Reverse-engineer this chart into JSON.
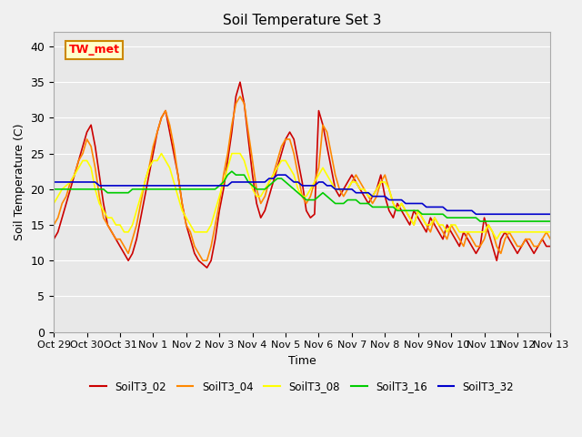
{
  "title": "Soil Temperature Set 3",
  "xlabel": "Time",
  "ylabel": "Soil Temperature (C)",
  "annotation": "TW_met",
  "ylim": [
    0,
    42
  ],
  "yticks": [
    0,
    5,
    10,
    15,
    20,
    25,
    30,
    35,
    40
  ],
  "series": {
    "SoilT3_02": {
      "color": "#cc0000",
      "y": [
        13,
        14,
        16,
        18,
        20,
        22,
        24,
        26,
        28,
        29,
        26,
        22,
        18,
        15,
        14,
        13,
        12,
        11,
        10,
        11,
        13,
        16,
        19,
        22,
        25,
        28,
        30,
        31,
        28,
        25,
        22,
        18,
        15,
        13,
        11,
        10,
        9.5,
        9,
        10,
        13,
        17,
        20,
        24,
        28,
        33,
        35,
        32,
        27,
        22,
        18,
        16,
        17,
        19,
        21,
        23,
        25,
        27,
        28,
        27,
        24,
        21,
        17,
        16,
        16.5,
        31,
        29,
        26,
        23,
        20,
        19,
        20,
        21,
        22,
        21,
        20,
        19,
        18,
        19,
        20,
        22,
        19,
        17,
        16,
        18,
        17,
        16,
        15,
        17,
        16,
        15,
        14,
        16,
        15,
        14,
        13,
        15,
        14,
        13,
        12,
        14,
        13,
        12,
        11,
        12,
        16,
        14,
        12,
        10,
        13,
        14,
        13,
        12,
        11,
        12,
        13,
        12,
        11,
        12,
        13,
        12,
        12,
        11,
        12,
        13,
        14,
        13,
        12,
        11,
        12,
        11,
        12,
        13,
        12,
        11,
        13,
        12,
        12,
        13,
        14,
        13,
        12,
        11,
        11,
        12,
        13,
        12,
        12,
        13,
        14,
        13,
        12,
        11,
        11,
        12,
        11,
        10,
        11,
        12,
        13,
        14,
        13,
        12,
        11,
        10,
        11,
        12,
        14,
        15,
        15,
        15,
        15,
        15,
        15,
        15,
        15,
        15,
        15,
        15,
        15,
        15,
        15,
        15,
        15,
        15,
        15,
        15,
        15,
        15,
        15,
        15,
        15,
        15,
        15,
        15,
        15
      ]
    },
    "SoilT3_04": {
      "color": "#ff8800",
      "y": [
        15,
        16,
        18,
        19,
        21,
        22,
        24,
        25,
        27,
        26,
        23,
        19,
        16,
        15,
        14,
        13,
        13,
        12,
        11,
        13,
        15,
        18,
        21,
        23,
        26,
        28,
        30,
        31,
        29,
        26,
        22,
        18,
        15,
        14,
        12,
        11,
        10,
        10,
        12,
        15,
        18,
        22,
        25,
        29,
        32,
        33,
        32,
        28,
        24,
        20,
        18,
        19,
        21,
        22,
        24,
        26,
        27,
        27,
        25,
        22,
        19,
        18,
        19,
        21,
        23,
        29,
        28,
        25,
        22,
        20,
        19,
        20,
        21,
        22,
        21,
        20,
        19,
        18,
        19,
        21,
        22,
        20,
        18,
        17,
        18,
        17,
        16,
        15,
        17,
        16,
        15,
        14,
        16,
        15,
        14,
        13,
        15,
        14,
        13,
        12,
        14,
        13,
        12,
        12,
        13,
        15,
        14,
        12,
        11,
        13,
        14,
        13,
        12,
        12,
        13,
        13,
        12,
        12,
        13,
        14,
        13,
        12,
        12,
        13,
        14,
        13,
        12,
        12,
        13,
        14,
        13,
        12,
        13,
        14,
        13,
        12,
        14,
        13,
        13,
        14,
        15,
        14,
        13,
        12,
        12,
        13,
        14,
        13,
        13,
        14,
        15,
        14,
        13,
        12,
        12,
        13,
        12,
        11,
        12,
        13,
        14,
        15,
        14,
        13,
        12,
        11,
        12,
        13,
        15,
        15.5,
        15.5,
        15,
        15,
        15,
        15,
        15,
        15,
        15,
        15,
        15,
        15,
        15,
        15,
        15,
        15,
        15,
        15,
        15,
        15,
        15,
        15,
        15,
        15,
        15,
        15
      ]
    },
    "SoilT3_08": {
      "color": "#ffff00",
      "y": [
        18,
        19,
        20,
        20.5,
        21,
        22,
        23,
        24,
        24,
        23,
        20,
        18,
        17,
        16,
        16,
        15,
        15,
        14,
        14,
        15,
        17,
        19,
        21,
        23,
        24,
        24,
        25,
        24,
        23,
        21,
        19,
        17,
        16,
        15,
        14,
        14,
        14,
        14,
        15,
        17,
        19,
        21,
        23,
        25,
        25,
        25,
        24,
        22,
        20,
        19,
        19,
        20,
        21,
        22,
        23,
        24,
        24,
        23,
        22,
        20,
        19,
        19,
        20,
        21,
        22,
        23,
        22,
        21,
        20,
        20,
        20,
        20,
        21,
        21,
        20,
        20,
        19,
        19,
        20,
        21,
        21,
        20,
        18,
        17,
        18,
        17,
        16,
        15,
        17,
        16,
        15,
        15,
        16,
        15,
        15,
        14,
        15,
        15,
        14,
        14,
        14,
        14,
        14,
        14,
        14,
        15,
        14,
        13,
        14,
        14,
        14,
        14,
        14,
        14,
        14,
        14,
        14,
        14,
        14,
        14,
        14,
        14,
        14,
        14,
        14,
        14,
        14,
        14,
        14,
        14,
        14,
        14,
        14,
        14,
        14,
        14,
        14,
        14,
        14,
        14,
        14,
        14,
        14,
        14,
        14,
        14,
        14,
        14,
        14,
        14,
        14,
        14,
        14,
        14,
        14,
        14,
        14,
        14,
        14,
        14,
        14,
        14,
        14,
        14,
        14,
        14,
        14,
        14.5,
        15,
        15,
        15,
        15,
        15,
        15,
        14.5,
        14.5,
        14.5,
        14.5,
        14.5,
        14.5,
        14.5,
        14.5,
        14.5,
        14.5,
        14.5,
        14.5,
        14.5,
        14.5,
        14.5,
        14.5,
        14.5,
        14.5,
        14.5,
        14.5,
        14.5
      ]
    },
    "SoilT3_16": {
      "color": "#00cc00",
      "y": [
        20,
        20,
        20,
        20,
        20,
        20,
        20,
        20,
        20,
        20,
        20,
        20,
        20,
        19.5,
        19.5,
        19.5,
        19.5,
        19.5,
        19.5,
        20,
        20,
        20,
        20,
        20,
        20,
        20,
        20,
        20,
        20,
        20,
        20,
        20,
        20,
        20,
        20,
        20,
        20,
        20,
        20,
        20,
        20.5,
        21,
        22,
        22.5,
        22,
        22,
        22,
        21,
        20.5,
        20,
        20,
        20,
        20.5,
        21,
        21.5,
        21.5,
        21,
        20.5,
        20,
        19.5,
        19,
        18.5,
        18.5,
        18.5,
        19,
        19.5,
        19,
        18.5,
        18,
        18,
        18,
        18.5,
        18.5,
        18.5,
        18,
        18,
        18,
        17.5,
        17.5,
        17.5,
        17.5,
        17.5,
        17.5,
        17,
        17,
        17,
        17,
        17,
        17,
        16.5,
        16.5,
        16.5,
        16.5,
        16.5,
        16.5,
        16,
        16,
        16,
        16,
        16,
        16,
        16,
        16,
        15.5,
        15.5,
        15.5,
        15.5,
        15.5,
        15.5,
        15.5,
        15.5,
        15.5,
        15.5,
        15.5,
        15.5,
        15.5,
        15.5,
        15.5,
        15.5,
        15.5,
        15.5,
        15.5,
        15.5,
        15.5,
        15.5,
        15.5,
        15.5,
        15.5,
        15.5,
        15.5,
        15.5,
        15.5,
        15.5,
        15.5,
        15.5,
        15,
        15,
        15,
        15,
        15,
        15,
        14.5,
        14.5,
        14.5,
        14.5,
        14.5,
        14.5,
        14.5,
        14.5,
        14.5,
        14.5,
        14.5,
        14.5,
        14.5,
        14.5,
        14.5,
        14.5,
        14.5,
        14.5,
        14.5,
        14.5,
        14.5,
        14.5,
        14.5,
        14.5,
        14.5,
        14.5,
        14.5,
        14.5,
        14.5,
        14.5,
        14.5,
        14.5,
        14.5,
        14.5,
        14.5,
        14.5,
        14.5,
        14.5,
        14.5,
        14.5,
        14.5,
        14.5,
        14.5,
        14.5,
        14.5,
        14.5,
        14.5,
        14.5,
        14.5,
        14.5,
        14.5,
        14.5,
        14.5,
        14.5,
        14.5,
        14.5,
        14.5,
        14.5,
        14.5
      ]
    },
    "SoilT3_32": {
      "color": "#0000cc",
      "y": [
        21,
        21,
        21,
        21,
        21,
        21,
        21,
        21,
        21,
        21,
        21,
        20.5,
        20.5,
        20.5,
        20.5,
        20.5,
        20.5,
        20.5,
        20.5,
        20.5,
        20.5,
        20.5,
        20.5,
        20.5,
        20.5,
        20.5,
        20.5,
        20.5,
        20.5,
        20.5,
        20.5,
        20.5,
        20.5,
        20.5,
        20.5,
        20.5,
        20.5,
        20.5,
        20.5,
        20.5,
        20.5,
        20.5,
        20.5,
        21,
        21,
        21,
        21,
        21,
        21,
        21,
        21,
        21,
        21.5,
        21.5,
        22,
        22,
        22,
        21.5,
        21,
        21,
        20.5,
        20.5,
        20.5,
        20.5,
        21,
        21,
        20.5,
        20.5,
        20,
        20,
        20,
        20,
        20,
        19.5,
        19.5,
        19.5,
        19.5,
        19,
        19,
        19,
        19,
        18.5,
        18.5,
        18.5,
        18.5,
        18,
        18,
        18,
        18,
        18,
        17.5,
        17.5,
        17.5,
        17.5,
        17.5,
        17,
        17,
        17,
        17,
        17,
        17,
        17,
        16.5,
        16.5,
        16.5,
        16.5,
        16.5,
        16.5,
        16.5,
        16.5,
        16.5,
        16.5,
        16.5,
        16.5,
        16.5,
        16.5,
        16.5,
        16.5,
        16.5,
        16.5,
        16.5,
        16.5,
        16.5,
        16.5,
        16.5,
        16.5,
        16.5,
        16.5,
        16.5,
        16.5,
        16.5,
        16.5,
        16.5,
        16.5,
        16.5,
        16.5,
        16.5,
        16.5,
        16.5,
        16.5,
        16.5,
        16.5,
        16.5,
        16.5,
        16.5,
        16.5,
        16.5,
        16.5,
        16.5,
        16.5,
        16.5,
        16.5,
        16.5,
        16.5,
        16,
        16,
        16,
        16,
        16,
        16,
        16,
        16,
        16,
        16,
        16,
        16,
        16,
        16,
        16,
        16,
        15.5,
        15.5,
        15.5,
        15.5,
        15.5,
        15.5,
        15.5,
        15.5,
        15.5,
        15.5,
        15.5,
        15.5,
        15.5,
        15.5,
        15.5,
        15.5,
        15.5,
        15.5,
        15.5,
        15.5,
        15.5,
        15.5,
        15.5,
        15.5,
        15.5,
        15.5,
        15.5,
        15.5,
        15.5,
        15.5,
        15.5,
        15.5,
        15.5,
        15.5
      ]
    }
  },
  "xtick_labels": [
    "Oct 29",
    "Oct 30",
    "Oct 31",
    "Nov 1",
    "Nov 2",
    "Nov 3",
    "Nov 4",
    "Nov 5",
    "Nov 6",
    "Nov 7",
    "Nov 8",
    "Nov 9",
    "Nov 10",
    "Nov 11",
    "Nov 12",
    "Nov 13"
  ],
  "xtick_positions": [
    0,
    4,
    8,
    12,
    16,
    20,
    24,
    28,
    32,
    36,
    40,
    44,
    48,
    52,
    56,
    60
  ],
  "legend_order": [
    "SoilT3_02",
    "SoilT3_04",
    "SoilT3_08",
    "SoilT3_16",
    "SoilT3_32"
  ]
}
